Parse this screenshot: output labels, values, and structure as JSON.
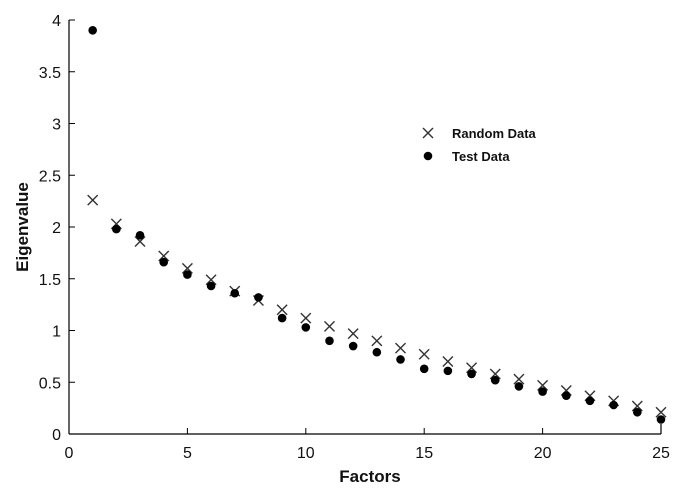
{
  "chart_data": {
    "type": "scatter",
    "title": "",
    "xlabel": "Factors",
    "ylabel": "Eigenvalue",
    "xlim": [
      0,
      25
    ],
    "ylim": [
      0,
      4
    ],
    "xticks": [
      0,
      5,
      10,
      15,
      20,
      25
    ],
    "yticks": [
      0,
      0.5,
      1,
      1.5,
      2,
      2.5,
      3,
      3.5,
      4
    ],
    "xtick_labels": [
      "0",
      "5",
      "10",
      "15",
      "20",
      "25"
    ],
    "ytick_labels": [
      "0",
      "0.5",
      "1",
      "1.5",
      "2",
      "2.5",
      "3",
      "3.5",
      "4"
    ],
    "grid": false,
    "legend_position": "upper-right",
    "series": [
      {
        "name": "Random Data",
        "marker": "x",
        "color": "#333333",
        "x": [
          1,
          2,
          3,
          4,
          5,
          6,
          7,
          8,
          9,
          10,
          11,
          12,
          13,
          14,
          15,
          16,
          17,
          18,
          19,
          20,
          21,
          22,
          23,
          24,
          25
        ],
        "y": [
          2.26,
          2.03,
          1.86,
          1.72,
          1.6,
          1.49,
          1.38,
          1.29,
          1.2,
          1.12,
          1.04,
          0.97,
          0.9,
          0.83,
          0.77,
          0.7,
          0.64,
          0.58,
          0.53,
          0.47,
          0.42,
          0.37,
          0.32,
          0.27,
          0.21
        ]
      },
      {
        "name": "Test Data",
        "marker": "dot",
        "color": "#000000",
        "x": [
          1,
          2,
          3,
          4,
          5,
          6,
          7,
          8,
          9,
          10,
          11,
          12,
          13,
          14,
          15,
          16,
          17,
          18,
          19,
          20,
          21,
          22,
          23,
          24,
          25
        ],
        "y": [
          3.9,
          1.98,
          1.92,
          1.66,
          1.54,
          1.43,
          1.36,
          1.32,
          1.12,
          1.03,
          0.9,
          0.85,
          0.79,
          0.72,
          0.63,
          0.61,
          0.58,
          0.52,
          0.46,
          0.41,
          0.37,
          0.32,
          0.28,
          0.21,
          0.14
        ]
      }
    ]
  }
}
